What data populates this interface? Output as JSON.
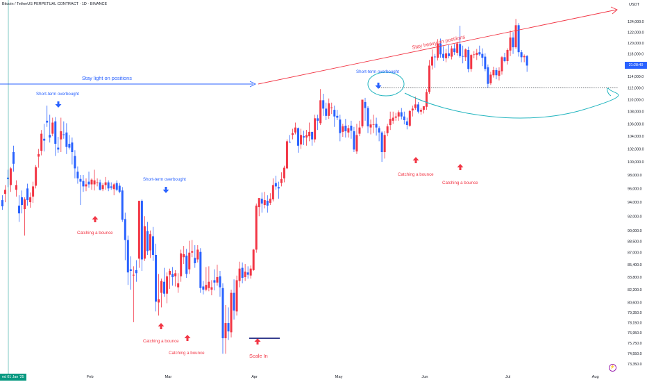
{
  "header": {
    "title": "Bitcoin / TetherUS PERPETUAL CONTRACT · 1D · BINANCE",
    "currency": "USDT"
  },
  "price_tag": "21:28:40",
  "date_tag": "ed 01 Jan '25",
  "colors": {
    "up": "#f23645",
    "down": "#2962ff",
    "arrow_blue": "#2962ff",
    "arrow_red": "#f23645",
    "trendline_red": "#f23645",
    "trendline_blue": "#2962ff",
    "curve_teal": "#22b5bf",
    "support": "#131722"
  },
  "chart_data": {
    "type": "candlestick",
    "title": "Bitcoin / TetherUS PERPETUAL CONTRACT · 1D · BINANCE",
    "price_axis": {
      "ticks": [
        124000,
        122000,
        120000,
        118000,
        116000,
        114000,
        112000,
        110000,
        108000,
        106000,
        104000,
        102000,
        100000,
        98000,
        96000,
        94000,
        92000,
        90000,
        88500,
        87000,
        85400,
        83800,
        82200,
        80600,
        79350,
        78150,
        76950,
        75750,
        74550,
        73350
      ],
      "tick_labels": [
        "124,000.0",
        "122,000.0",
        "120,000.0",
        "118,000.0",
        "116,000.0",
        "114,000.0",
        "112,000.0",
        "110,000.0",
        "108,000.0",
        "106,000.0",
        "104,000.0",
        "102,000.0",
        "100,000.0",
        "98,000.0",
        "96,000.0",
        "94,000.0",
        "92,000.0",
        "90,000.0",
        "88,500.0",
        "87,000.0",
        "85,400.0",
        "83,800.0",
        "82,200.0",
        "80,600.0",
        "79,350.0",
        "78,150.0",
        "76,950.0",
        "75,750.0",
        "74,550.0",
        "73,350.0"
      ],
      "scale": "log"
    },
    "time_axis": {
      "labels": [
        "Feb",
        "Mar",
        "Apr",
        "May",
        "Jun",
        "Jul",
        "Aug"
      ]
    },
    "start_date": "2025-01-01",
    "grid": false,
    "ohlc": [
      [
        94300,
        95000,
        92900,
        93400
      ],
      [
        95200,
        96500,
        94000,
        95800
      ],
      [
        97600,
        98800,
        96200,
        97400
      ],
      [
        96500,
        99200,
        95500,
        99000
      ],
      [
        101500,
        102500,
        98500,
        99700
      ],
      [
        95800,
        97200,
        94800,
        96500
      ],
      [
        93500,
        95000,
        91200,
        92400
      ],
      [
        94700,
        95700,
        92400,
        93600
      ],
      [
        93000,
        94700,
        89300,
        94400
      ],
      [
        96000,
        96700,
        93500,
        94300
      ],
      [
        94000,
        95400,
        93200,
        94700
      ],
      [
        94800,
        97000,
        93900,
        96300
      ],
      [
        96400,
        99500,
        96000,
        99200
      ],
      [
        100800,
        102000,
        99100,
        101200
      ],
      [
        101700,
        105000,
        101000,
        104400
      ],
      [
        103600,
        106000,
        101600,
        103300
      ],
      [
        106500,
        109000,
        105500,
        106200
      ],
      [
        104200,
        107500,
        103000,
        103800
      ],
      [
        104400,
        107000,
        104000,
        106200
      ],
      [
        106400,
        107100,
        100900,
        102800
      ],
      [
        102200,
        103900,
        101400,
        101900
      ],
      [
        103500,
        107000,
        101500,
        104800
      ],
      [
        104300,
        106400,
        103600,
        104200
      ],
      [
        104600,
        106100,
        101200,
        102300
      ],
      [
        102800,
        104200,
        101900,
        102200
      ],
      [
        103000,
        103800,
        99600,
        101500
      ],
      [
        100900,
        101800,
        97500,
        99000
      ],
      [
        98500,
        99300,
        96700,
        97500
      ],
      [
        97400,
        98000,
        93600,
        97000
      ],
      [
        97100,
        98000,
        95500,
        96300
      ],
      [
        96300,
        97500,
        95600,
        96600
      ],
      [
        97000,
        98500,
        96100,
        96600
      ],
      [
        96600,
        97500,
        95800,
        97300
      ],
      [
        96600,
        98800,
        95700,
        97200
      ],
      [
        96900,
        97500,
        96300,
        96900
      ],
      [
        96900,
        97300,
        95700,
        95800
      ],
      [
        95900,
        96800,
        95600,
        96500
      ],
      [
        96500,
        97700,
        95800,
        96900
      ],
      [
        96900,
        97200,
        95600,
        96000
      ],
      [
        96300,
        96900,
        95800,
        96100
      ],
      [
        95900,
        96800,
        95000,
        96600
      ],
      [
        96800,
        97200,
        95600,
        95800
      ],
      [
        96400,
        96800,
        95300,
        95500
      ],
      [
        95700,
        96200,
        91200,
        91500
      ],
      [
        91600,
        92500,
        86000,
        88700
      ],
      [
        88700,
        89300,
        82800,
        84400
      ],
      [
        84800,
        86500,
        82200,
        84600
      ],
      [
        84000,
        85200,
        78200,
        84100
      ],
      [
        84700,
        86000,
        83200,
        84300
      ],
      [
        86200,
        94000,
        85000,
        94200
      ],
      [
        94200,
        94400,
        84600,
        86100
      ],
      [
        86200,
        92000,
        85900,
        90600
      ],
      [
        89900,
        91200,
        86700,
        87200
      ],
      [
        87300,
        90000,
        86300,
        89500
      ],
      [
        89200,
        90500,
        85900,
        86700
      ],
      [
        86700,
        88200,
        79500,
        80700
      ],
      [
        80600,
        84200,
        79000,
        81000
      ],
      [
        81800,
        83600,
        80000,
        83300
      ],
      [
        83200,
        85000,
        81300,
        81700
      ],
      [
        81700,
        84400,
        80500,
        83900
      ],
      [
        84100,
        84900,
        82300,
        84600
      ],
      [
        84200,
        85100,
        82700,
        83800
      ],
      [
        83900,
        84700,
        82600,
        84300
      ],
      [
        82500,
        84300,
        81800,
        83000
      ],
      [
        83900,
        87400,
        83200,
        86900
      ],
      [
        86400,
        87900,
        85500,
        86800
      ],
      [
        86600,
        87500,
        83700,
        84200
      ],
      [
        84800,
        88600,
        84200,
        87000
      ],
      [
        87000,
        88700,
        86400,
        87200
      ],
      [
        86300,
        88000,
        85000,
        85600
      ],
      [
        86100,
        88000,
        85700,
        87400
      ],
      [
        87100,
        87600,
        81800,
        82400
      ],
      [
        82600,
        83300,
        81600,
        82200
      ],
      [
        82200,
        85100,
        82000,
        82800
      ],
      [
        82400,
        85200,
        82000,
        83200
      ],
      [
        82200,
        83400,
        81500,
        82500
      ],
      [
        83400,
        84800,
        82100,
        83100
      ],
      [
        83100,
        85400,
        82700,
        83800
      ],
      [
        83900,
        84600,
        81300,
        82500
      ],
      [
        82400,
        83000,
        74500,
        76300
      ],
      [
        76300,
        80300,
        74500,
        78100
      ],
      [
        78100,
        80000,
        76100,
        77100
      ],
      [
        77000,
        82200,
        76400,
        81800
      ],
      [
        81800,
        83500,
        78500,
        79600
      ],
      [
        79500,
        84000,
        79000,
        83400
      ],
      [
        83300,
        85800,
        82500,
        84900
      ],
      [
        85000,
        85700,
        83000,
        83700
      ],
      [
        83800,
        85500,
        83300,
        84500
      ],
      [
        84400,
        85200,
        83600,
        84100
      ],
      [
        84000,
        85300,
        83600,
        84900
      ],
      [
        84700,
        87500,
        84600,
        87400
      ],
      [
        87400,
        93800,
        87000,
        93500
      ],
      [
        93300,
        94400,
        92000,
        94600
      ],
      [
        94500,
        95400,
        92500,
        93800
      ],
      [
        93600,
        95500,
        93100,
        94300
      ],
      [
        94200,
        95000,
        92500,
        93500
      ],
      [
        93900,
        95300,
        93600,
        94500
      ],
      [
        94400,
        97500,
        94100,
        96500
      ],
      [
        96800,
        97900,
        95800,
        96300
      ],
      [
        96200,
        97000,
        94500,
        96000
      ],
      [
        96800,
        98400,
        96300,
        97400
      ],
      [
        97500,
        99400,
        96900,
        99100
      ],
      [
        99000,
        103500,
        98900,
        103200
      ],
      [
        103100,
        104200,
        103000,
        103000
      ],
      [
        104200,
        105200,
        103500,
        104500
      ],
      [
        104600,
        106200,
        104300,
        105400
      ],
      [
        105300,
        105400,
        101400,
        102500
      ],
      [
        102700,
        105200,
        102000,
        104200
      ],
      [
        104000,
        104900,
        102600,
        103800
      ],
      [
        103800,
        105000,
        102500,
        104200
      ],
      [
        104000,
        106200,
        103200,
        104700
      ],
      [
        104700,
        104700,
        102500,
        103500
      ],
      [
        103500,
        107500,
        103000,
        106900
      ],
      [
        106900,
        107500,
        105000,
        106500
      ],
      [
        106100,
        111800,
        105800,
        109900
      ],
      [
        109900,
        111000,
        107300,
        108500
      ],
      [
        108500,
        109500,
        106600,
        107300
      ],
      [
        107300,
        110200,
        106800,
        109400
      ],
      [
        108600,
        109500,
        107600,
        108700
      ],
      [
        108300,
        109000,
        105500,
        107200
      ],
      [
        107300,
        108300,
        106600,
        107000
      ],
      [
        106700,
        107500,
        103200,
        104500
      ],
      [
        104700,
        106000,
        103900,
        105600
      ],
      [
        105700,
        106800,
        103800,
        104800
      ],
      [
        104600,
        105800,
        103800,
        105300
      ],
      [
        105700,
        106500,
        103600,
        104900
      ],
      [
        104800,
        105500,
        101500,
        101900
      ],
      [
        101600,
        106000,
        101200,
        104200
      ],
      [
        104400,
        106500,
        104000,
        105400
      ],
      [
        105600,
        110000,
        105300,
        110000
      ],
      [
        109600,
        110300,
        106500,
        108600
      ],
      [
        108600,
        108900,
        104500,
        105600
      ],
      [
        105400,
        106700,
        104300,
        105900
      ],
      [
        105900,
        107500,
        104500,
        105900
      ],
      [
        106000,
        107000,
        104100,
        105400
      ],
      [
        105300,
        105600,
        103200,
        104600
      ],
      [
        104600,
        104800,
        100000,
        101500
      ],
      [
        101500,
        104800,
        100500,
        104200
      ],
      [
        104500,
        106000,
        104000,
        105600
      ],
      [
        105800,
        108000,
        105000,
        106800
      ],
      [
        106500,
        108000,
        106000,
        107000
      ],
      [
        107000,
        107800,
        106500,
        107200
      ],
      [
        107200,
        108200,
        106500,
        107900
      ],
      [
        107900,
        108600,
        106700,
        107200
      ],
      [
        107200,
        108000,
        105900,
        106600
      ],
      [
        106400,
        107000,
        105100,
        105800
      ],
      [
        105700,
        108300,
        105500,
        108100
      ],
      [
        108200,
        109000,
        107200,
        108500
      ],
      [
        108600,
        110500,
        108300,
        109200
      ],
      [
        109200,
        109600,
        107700,
        108000
      ],
      [
        108000,
        108600,
        107500,
        108300
      ],
      [
        108300,
        108800,
        107700,
        108900
      ],
      [
        108800,
        111800,
        108300,
        111300
      ],
      [
        111300,
        116900,
        111000,
        115900
      ],
      [
        115900,
        118800,
        115200,
        117500
      ],
      [
        117500,
        118000,
        115500,
        117400
      ],
      [
        117300,
        120700,
        116800,
        119900
      ],
      [
        119900,
        120800,
        117300,
        117900
      ],
      [
        118000,
        119400,
        116700,
        117300
      ],
      [
        117200,
        118900,
        116500,
        118100
      ],
      [
        118100,
        119600,
        117200,
        117600
      ],
      [
        117500,
        119500,
        117000,
        119000
      ],
      [
        119000,
        119800,
        117800,
        118300
      ],
      [
        118200,
        120200,
        117700,
        119900
      ],
      [
        119800,
        123200,
        117300,
        117600
      ],
      [
        117600,
        119500,
        116300,
        117500
      ],
      [
        117400,
        119000,
        116700,
        118800
      ],
      [
        118700,
        119300,
        114700,
        115300
      ],
      [
        115300,
        118000,
        114800,
        117800
      ],
      [
        117800,
        118500,
        117200,
        117900
      ],
      [
        117800,
        118900,
        116900,
        118200
      ],
      [
        118300,
        119500,
        117600,
        117900
      ],
      [
        118000,
        119000,
        115800,
        117300
      ],
      [
        117500,
        118100,
        114900,
        115300
      ],
      [
        115600,
        116100,
        112000,
        112700
      ],
      [
        112800,
        114800,
        112500,
        114300
      ],
      [
        114200,
        115700,
        113800,
        115100
      ],
      [
        115100,
        115500,
        113500,
        114200
      ],
      [
        114100,
        115600,
        113300,
        115000
      ],
      [
        114900,
        117600,
        114300,
        117400
      ],
      [
        117400,
        118200,
        116500,
        116700
      ],
      [
        116700,
        119000,
        116100,
        118700
      ],
      [
        118600,
        122300,
        117600,
        121000
      ],
      [
        121000,
        122000,
        118000,
        119200
      ],
      [
        119200,
        124500,
        118900,
        123300
      ],
      [
        123300,
        123700,
        117500,
        118300
      ],
      [
        118300,
        118700,
        116500,
        117400
      ],
      [
        117400,
        117900,
        116500,
        117600
      ],
      [
        117600,
        117800,
        114800,
        115900
      ]
    ],
    "annotations": [
      "Stay light on positions",
      "Stay heavy on positions",
      "Short-term overbought",
      "Short-term overbought",
      "Short-term overbought",
      "Catching a bounce",
      "Catching a bounce",
      "Catching a bounce",
      "Catching a bounce",
      "Catching a bounce",
      "Scale In"
    ],
    "support_level": 112000
  }
}
